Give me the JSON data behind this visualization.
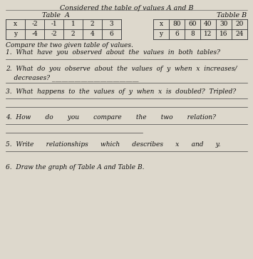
{
  "title": "Considered the table of values A and B",
  "table_a_label": "Table  A",
  "table_b_label": "Tabble B",
  "table_a_x": [
    "x",
    "-2",
    "-1",
    "1",
    "2",
    "3"
  ],
  "table_a_y": [
    "y",
    "-4",
    "-2",
    "2",
    "4",
    "6"
  ],
  "table_b_x": [
    "x",
    "80",
    "60",
    "40",
    "30",
    "20"
  ],
  "table_b_y": [
    "y",
    "6",
    "8",
    "12",
    "16",
    "24"
  ],
  "q0": "Compare the two given table of values.",
  "q1a": "1.  What  have  you  observed  about  the  values  in  both  tables?",
  "q2a": "2.  What  do  you  observe  about  the  values  of  y  when  x  increases/",
  "q2b": "    decreases? ___________________________",
  "q3": "3.  What  happens  to  the  values  of  y  when  x  is  doubled?  Tripled?",
  "q4": "4.  How       do       you       compare       the       two       relation?",
  "q5": "5.  Write      relationships      which      describes      x      and      y.",
  "q6": "6.  Draw the graph of Table A and Table B.",
  "bg_color": "#ddd8cc",
  "line_color": "#444444",
  "text_color": "#111111"
}
